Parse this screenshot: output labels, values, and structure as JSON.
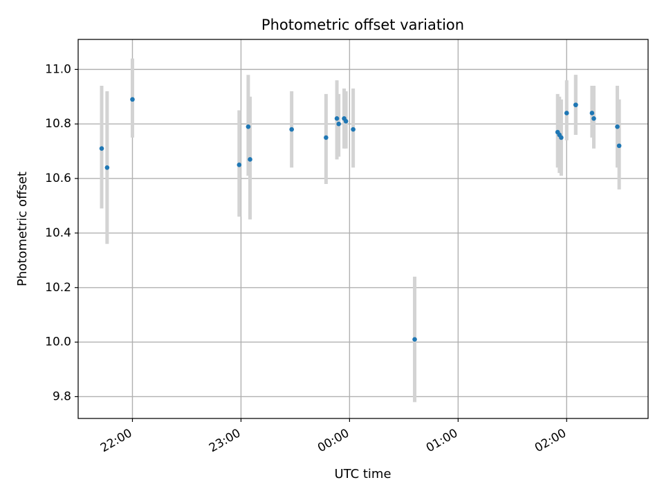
{
  "chart_data": {
    "type": "scatter",
    "title": "Photometric offset variation",
    "xlabel": "UTC time",
    "ylabel": "Photometric offset",
    "x_unit": "UTC time (HH:MM)",
    "xlim": [
      "21:30",
      "02:45"
    ],
    "ylim": [
      9.72,
      11.11
    ],
    "grid": true,
    "x_ticks": [
      {
        "value": "22:00",
        "label": "22:00"
      },
      {
        "value": "23:00",
        "label": "23:00"
      },
      {
        "value": "00:00",
        "label": "00:00"
      },
      {
        "value": "01:00",
        "label": "01:00"
      },
      {
        "value": "02:00",
        "label": "02:00"
      }
    ],
    "y_ticks": [
      9.8,
      10.0,
      10.2,
      10.4,
      10.6,
      10.8,
      11.0
    ],
    "y_tick_labels": [
      "9.8",
      "10.0",
      "10.2",
      "10.4",
      "10.6",
      "10.8",
      "11.0"
    ],
    "marker_color": "#1f77b4",
    "errorbar_color": "#d3d3d3",
    "series": [
      {
        "points": [
          {
            "x": "21:43",
            "y": 10.71,
            "ylow": 10.49,
            "yhigh": 10.94
          },
          {
            "x": "21:46",
            "y": 10.64,
            "ylow": 10.36,
            "yhigh": 10.92
          },
          {
            "x": "22:00",
            "y": 10.89,
            "ylow": 10.75,
            "yhigh": 11.04
          },
          {
            "x": "22:59",
            "y": 10.65,
            "ylow": 10.46,
            "yhigh": 10.85
          },
          {
            "x": "23:04",
            "y": 10.79,
            "ylow": 10.61,
            "yhigh": 10.98
          },
          {
            "x": "23:05",
            "y": 10.67,
            "ylow": 10.45,
            "yhigh": 10.9
          },
          {
            "x": "23:28",
            "y": 10.78,
            "ylow": 10.64,
            "yhigh": 10.92
          },
          {
            "x": "23:47",
            "y": 10.75,
            "ylow": 10.58,
            "yhigh": 10.91
          },
          {
            "x": "23:53",
            "y": 10.82,
            "ylow": 10.67,
            "yhigh": 10.96
          },
          {
            "x": "23:54",
            "y": 10.8,
            "ylow": 10.68,
            "yhigh": 10.91
          },
          {
            "x": "23:57",
            "y": 10.82,
            "ylow": 10.71,
            "yhigh": 10.93
          },
          {
            "x": "23:58",
            "y": 10.81,
            "ylow": 10.71,
            "yhigh": 10.92
          },
          {
            "x": "00:02",
            "y": 10.78,
            "ylow": 10.64,
            "yhigh": 10.93
          },
          {
            "x": "00:36",
            "y": 10.01,
            "ylow": 9.78,
            "yhigh": 10.24
          },
          {
            "x": "01:55",
            "y": 10.77,
            "ylow": 10.64,
            "yhigh": 10.91
          },
          {
            "x": "01:56",
            "y": 10.76,
            "ylow": 10.62,
            "yhigh": 10.9
          },
          {
            "x": "01:57",
            "y": 10.75,
            "ylow": 10.61,
            "yhigh": 10.89
          },
          {
            "x": "02:00",
            "y": 10.84,
            "ylow": 10.74,
            "yhigh": 10.96
          },
          {
            "x": "02:05",
            "y": 10.87,
            "ylow": 10.76,
            "yhigh": 10.98
          },
          {
            "x": "02:05",
            "y": 10.87,
            "ylow": 10.76,
            "yhigh": 10.98
          },
          {
            "x": "02:14",
            "y": 10.84,
            "ylow": 10.75,
            "yhigh": 10.94
          },
          {
            "x": "02:15",
            "y": 10.82,
            "ylow": 10.71,
            "yhigh": 10.94
          },
          {
            "x": "02:28",
            "y": 10.79,
            "ylow": 10.64,
            "yhigh": 10.94
          },
          {
            "x": "02:29",
            "y": 10.72,
            "ylow": 10.56,
            "yhigh": 10.89
          }
        ]
      }
    ]
  }
}
